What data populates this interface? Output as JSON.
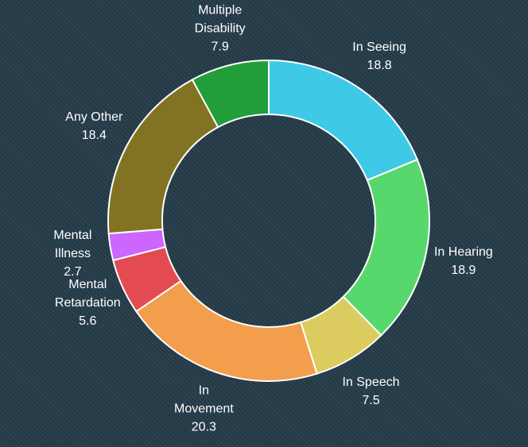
{
  "chart_data": {
    "type": "pie",
    "variant": "donut",
    "title": "",
    "legend": "none",
    "slices": [
      {
        "name_lines": [
          "In Seeing"
        ],
        "value": 18.8,
        "value_label": "18.8",
        "color": "#3ec9e6"
      },
      {
        "name_lines": [
          "In Hearing"
        ],
        "value": 18.9,
        "value_label": "18.9",
        "color": "#57d86c"
      },
      {
        "name_lines": [
          "In Speech"
        ],
        "value": 7.5,
        "value_label": "7.5",
        "color": "#dccb5e"
      },
      {
        "name_lines": [
          "In",
          "Movement"
        ],
        "value": 20.3,
        "value_label": "20.3",
        "color": "#f29e4c"
      },
      {
        "name_lines": [
          "Mental",
          "Retardation"
        ],
        "value": 5.6,
        "value_label": "5.6",
        "color": "#e34a52"
      },
      {
        "name_lines": [
          "Mental",
          "Illness"
        ],
        "value": 2.7,
        "value_label": "2.7",
        "color": "#cc66ff"
      },
      {
        "name_lines": [
          "Any Other"
        ],
        "value": 18.4,
        "value_label": "18.4",
        "color": "#827322"
      },
      {
        "name_lines": [
          "Multiple",
          "Disability"
        ],
        "value": 7.9,
        "value_label": "7.9",
        "color": "#219d3a"
      }
    ]
  }
}
